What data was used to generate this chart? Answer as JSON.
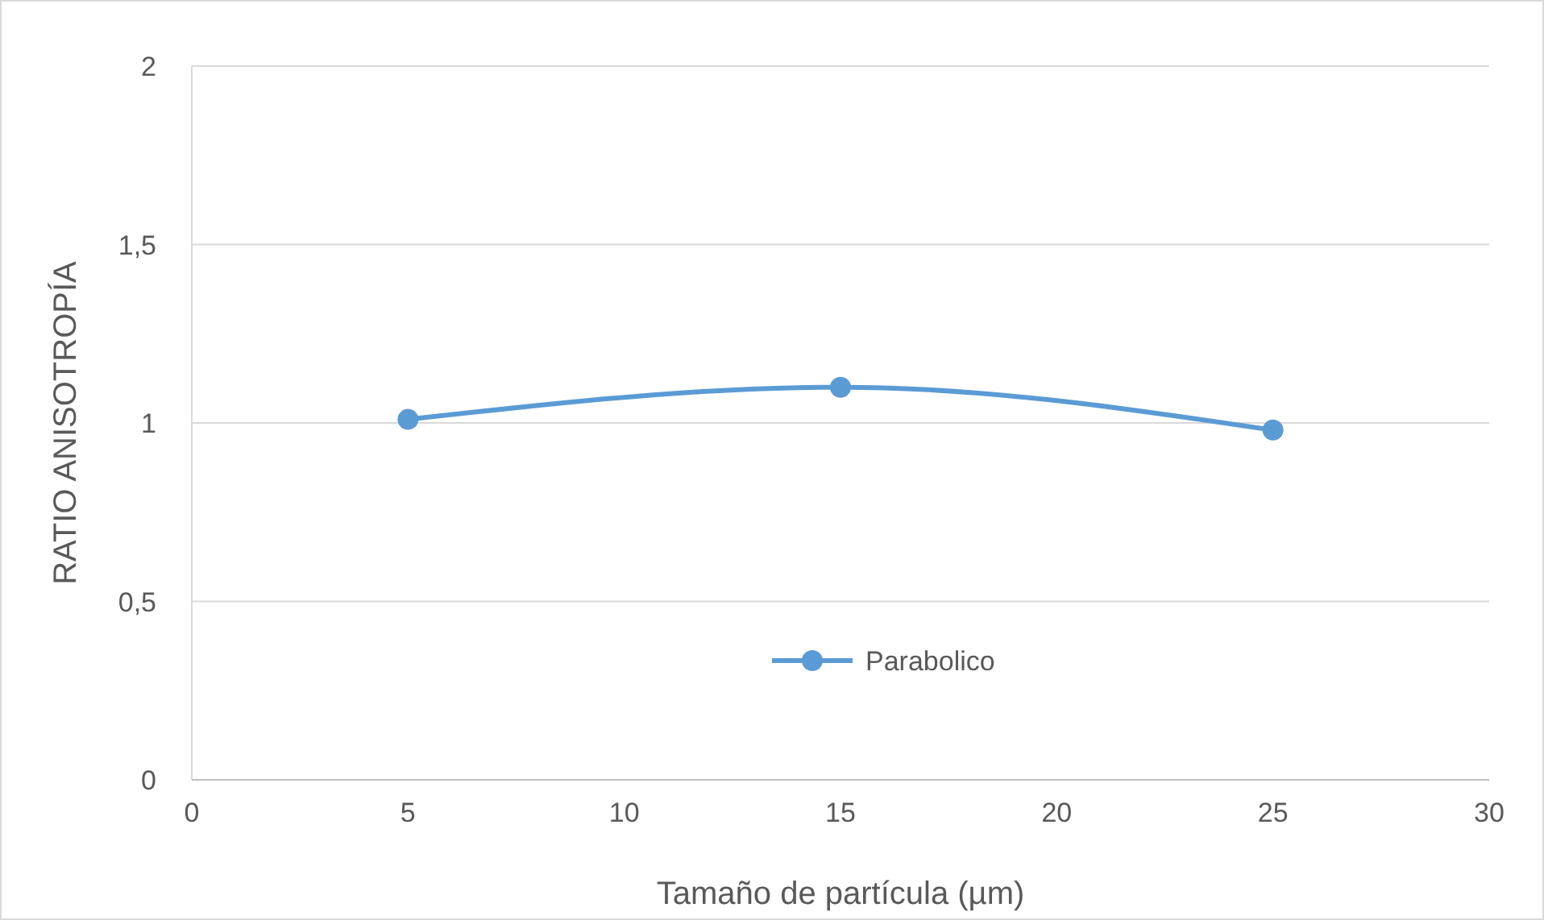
{
  "chart_data": {
    "type": "line",
    "xlabel": "Tamaño de partícula (µm)",
    "ylabel": "RATIO ANISOTROPÍA",
    "x": [
      5,
      15,
      25
    ],
    "series": [
      {
        "name": "Parabolico",
        "color": "#5b9bd5",
        "values": [
          1.01,
          1.1,
          0.98
        ]
      }
    ],
    "xlim": [
      0,
      30
    ],
    "xticks": [
      0,
      5,
      10,
      15,
      20,
      25,
      30
    ],
    "ylim": [
      0,
      2
    ],
    "yticks": [
      0,
      {
        "value": 0.5,
        "label": "0,5"
      },
      1,
      {
        "value": 1.5,
        "label": "1,5"
      },
      2
    ],
    "grid": "y",
    "legend": "bottom",
    "marker": "circle",
    "line_style": "solid"
  }
}
